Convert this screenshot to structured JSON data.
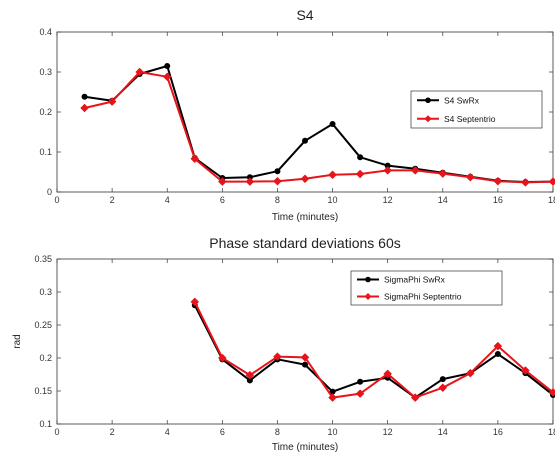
{
  "chart_data": [
    {
      "type": "line",
      "title": "S4",
      "xlabel": "Time (minutes)",
      "ylabel": "",
      "xlim": [
        0,
        18
      ],
      "ylim": [
        0,
        0.4
      ],
      "xticks": [
        0,
        2,
        4,
        6,
        8,
        10,
        12,
        14,
        16,
        18
      ],
      "xtick_labels": [
        "0",
        "2",
        "4",
        "6",
        "8",
        "10",
        "12",
        "14",
        "16",
        "18"
      ],
      "yticks": [
        0,
        0.1,
        0.2,
        0.3,
        0.4
      ],
      "ytick_labels": [
        "0",
        "0.1",
        "0.2",
        "0.3",
        "0.4"
      ],
      "grid": false,
      "legend": "right",
      "series": [
        {
          "name": "S4 SwRx",
          "color": "#000000",
          "marker": "circle",
          "x": [
            1,
            2,
            3,
            4,
            5,
            6,
            7,
            8,
            9,
            10,
            11,
            12,
            13,
            14,
            15,
            16,
            17,
            18
          ],
          "y": [
            0.238,
            0.228,
            0.295,
            0.315,
            0.085,
            0.035,
            0.037,
            0.052,
            0.128,
            0.17,
            0.087,
            0.066,
            0.058,
            0.048,
            0.038,
            0.028,
            0.025,
            0.026
          ]
        },
        {
          "name": "S4 Septentrio",
          "color": "#e8141b",
          "marker": "diamond",
          "x": [
            1,
            2,
            3,
            4,
            5,
            6,
            7,
            8,
            9,
            10,
            11,
            12,
            13,
            14,
            15,
            16,
            17,
            18
          ],
          "y": [
            0.21,
            0.226,
            0.3,
            0.288,
            0.083,
            0.026,
            0.026,
            0.027,
            0.033,
            0.043,
            0.045,
            0.054,
            0.054,
            0.046,
            0.037,
            0.027,
            0.024,
            0.026
          ]
        }
      ]
    },
    {
      "type": "line",
      "title": "Phase standard deviations 60s",
      "xlabel": "Time (minutes)",
      "ylabel": "rad",
      "xlim": [
        0,
        18
      ],
      "ylim": [
        0.1,
        0.35
      ],
      "xticks": [
        0,
        2,
        4,
        6,
        8,
        10,
        12,
        14,
        16,
        18
      ],
      "xtick_labels": [
        "0",
        "2",
        "4",
        "6",
        "8",
        "10",
        "12",
        "14",
        "16",
        "18"
      ],
      "yticks": [
        0.1,
        0.15,
        0.2,
        0.25,
        0.3,
        0.35
      ],
      "ytick_labels": [
        "0.1",
        "0.15",
        "0.2",
        "0.25",
        "0.3",
        "0.35"
      ],
      "grid": false,
      "legend": "top-right",
      "series": [
        {
          "name": "SigmaPhi SwRx",
          "color": "#000000",
          "marker": "circle",
          "x": [
            5,
            6,
            7,
            8,
            9,
            10,
            11,
            12,
            13,
            14,
            15,
            16,
            17,
            18
          ],
          "y": [
            0.28,
            0.198,
            0.166,
            0.198,
            0.19,
            0.149,
            0.164,
            0.17,
            0.14,
            0.168,
            0.177,
            0.206,
            0.177,
            0.144
          ]
        },
        {
          "name": "SigmaPhi Septentrio",
          "color": "#e8141b",
          "marker": "diamond",
          "x": [
            5,
            6,
            7,
            8,
            9,
            10,
            11,
            12,
            13,
            14,
            15,
            16,
            17,
            18
          ],
          "y": [
            0.285,
            0.2,
            0.174,
            0.202,
            0.201,
            0.14,
            0.146,
            0.176,
            0.14,
            0.155,
            0.177,
            0.218,
            0.181,
            0.148
          ]
        }
      ]
    }
  ]
}
